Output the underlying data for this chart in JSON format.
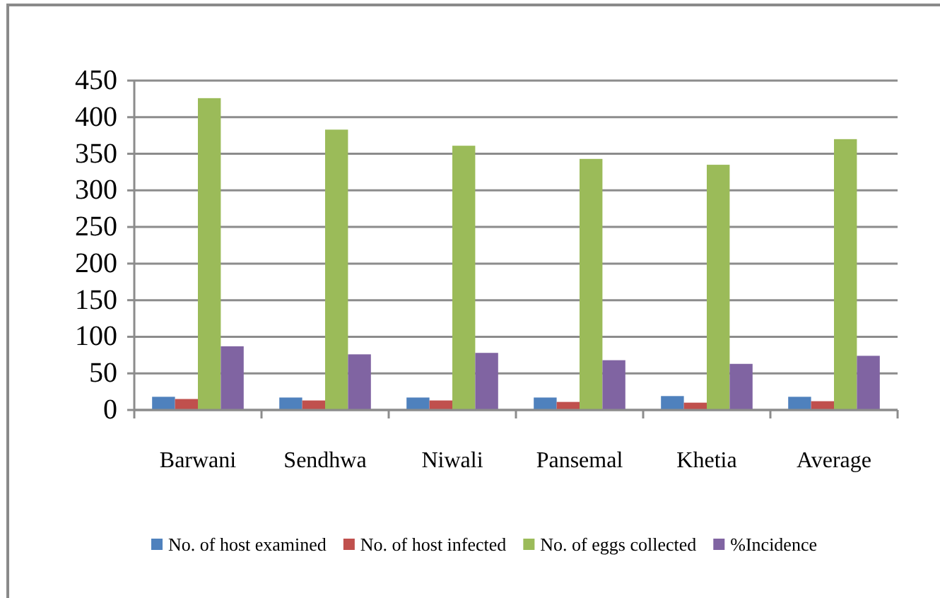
{
  "chart_data": {
    "type": "bar",
    "categories": [
      "Barwani",
      "Sendhwa",
      "Niwali",
      "Pansemal",
      "Khetia",
      "Average"
    ],
    "series": [
      {
        "name": "No. of host examined",
        "color": "#4f81bd",
        "values": [
          18,
          17,
          17,
          17,
          19,
          18
        ]
      },
      {
        "name": "No. of host infected",
        "color": "#c0504d",
        "values": [
          15,
          13,
          13,
          11,
          10,
          12
        ]
      },
      {
        "name": "No. of eggs collected",
        "color": "#9bbb59",
        "values": [
          426,
          383,
          361,
          343,
          335,
          370
        ]
      },
      {
        "name": "%Incidence",
        "color": "#8064a2",
        "values": [
          87,
          76,
          78,
          68,
          63,
          74
        ]
      }
    ],
    "ylim": [
      0,
      450
    ],
    "yticks": [
      0,
      50,
      100,
      150,
      200,
      250,
      300,
      350,
      400,
      450
    ],
    "grid": "y",
    "legend": "bottom"
  }
}
